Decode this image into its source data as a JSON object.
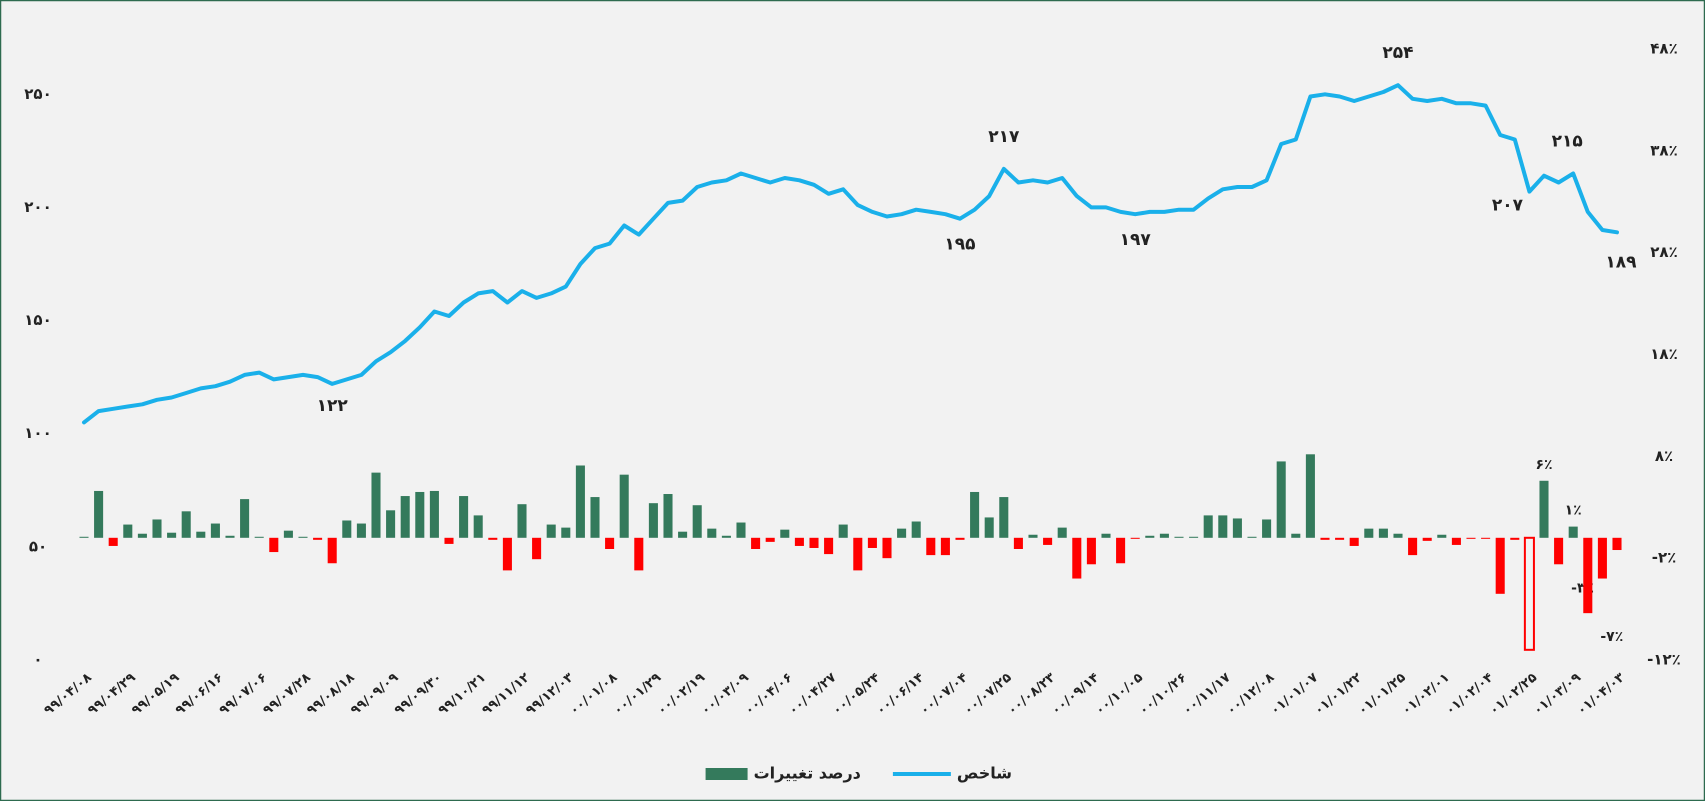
{
  "chart_data": {
    "type": "combo",
    "categories": [
      "۹۹/۰۴/۰۸",
      null,
      null,
      "۹۹/۰۴/۲۹",
      null,
      null,
      "۹۹/۰۵/۱۹",
      null,
      null,
      "۹۹/۰۶/۱۶",
      null,
      null,
      "۹۹/۰۷/۰۶",
      null,
      null,
      "۹۹/۰۷/۲۸",
      null,
      null,
      "۹۹/۰۸/۱۸",
      null,
      null,
      "۹۹/۰۹/۰۹",
      null,
      null,
      "۹۹/۰۹/۳۰",
      null,
      null,
      "۹۹/۱۰/۲۱",
      null,
      null,
      "۹۹/۱۱/۱۲",
      null,
      null,
      "۹۹/۱۲/۰۳",
      null,
      null,
      "۰۰/۰۱/۰۸",
      null,
      null,
      "۰۰/۰۱/۲۹",
      null,
      null,
      "۰۰/۰۲/۱۹",
      null,
      null,
      "۰۰/۰۳/۰۹",
      null,
      null,
      "۰۰/۰۴/۰۶",
      null,
      null,
      "۰۰/۰۴/۲۷",
      null,
      null,
      "۰۰/۰۵/۲۴",
      null,
      null,
      "۰۰/۰۶/۱۴",
      null,
      null,
      "۰۰/۰۷/۰۴",
      null,
      null,
      "۰۰/۰۷/۲۵",
      null,
      null,
      "۰۰/۰۸/۲۳",
      null,
      null,
      "۰۰/۰۹/۱۴",
      null,
      null,
      "۰۰/۱۰/۰۵",
      null,
      null,
      "۰۰/۱۰/۲۶",
      null,
      null,
      "۰۰/۱۱/۱۷",
      null,
      null,
      "۰۰/۱۲/۰۸",
      null,
      null,
      "۰۱/۰۱/۰۷",
      null,
      null,
      "۰۱/۰۱/۲۲",
      null,
      null,
      "۰۱/۰۱/۲۵",
      null,
      null,
      "۰۱/۰۲/۰۱",
      null,
      null,
      "۰۱/۰۲/۰۴",
      null,
      null,
      "۰۱/۰۲/۲۵",
      null,
      null,
      "۰۱/۰۳/۰۹",
      null,
      null,
      "۰۱/۰۴/۰۳"
    ],
    "series": [
      {
        "name": "شاخص",
        "type": "line",
        "color": "#1ab0ea",
        "values": [
          105,
          110,
          111,
          112,
          113,
          115,
          116,
          118,
          120,
          121,
          123,
          126,
          127,
          124,
          125,
          126,
          125,
          122,
          124,
          126,
          132,
          136,
          141,
          147,
          154,
          152,
          158,
          162,
          163,
          158,
          163,
          160,
          162,
          165,
          175,
          182,
          184,
          192,
          188,
          195,
          202,
          203,
          209,
          211,
          212,
          215,
          213,
          211,
          213,
          212,
          210,
          206,
          208,
          201,
          198,
          196,
          197,
          199,
          198,
          197,
          195,
          199,
          205,
          217,
          211,
          212,
          211,
          213,
          205,
          200,
          200,
          198,
          197,
          198,
          198,
          199,
          199,
          204,
          208,
          209,
          209,
          212,
          228,
          230,
          249,
          250,
          249,
          247,
          249,
          251,
          254,
          248,
          247,
          248,
          246,
          246,
          245,
          232,
          230,
          207,
          214,
          211,
          215,
          198,
          190,
          189
        ],
        "value_labels": [
          null,
          null,
          null,
          null,
          null,
          null,
          null,
          null,
          null,
          null,
          null,
          null,
          null,
          null,
          null,
          null,
          null,
          "۱۲۲",
          null,
          null,
          null,
          null,
          null,
          null,
          null,
          null,
          null,
          null,
          null,
          null,
          null,
          null,
          null,
          null,
          null,
          null,
          null,
          null,
          null,
          null,
          null,
          null,
          null,
          null,
          null,
          null,
          null,
          null,
          null,
          null,
          null,
          null,
          null,
          null,
          null,
          null,
          null,
          null,
          null,
          null,
          "۱۹۵",
          null,
          null,
          "۲۱۷",
          null,
          null,
          null,
          null,
          null,
          null,
          null,
          null,
          "۱۹۷",
          null,
          null,
          null,
          null,
          null,
          null,
          null,
          null,
          null,
          null,
          null,
          null,
          null,
          null,
          null,
          null,
          null,
          "۲۵۴",
          null,
          null,
          null,
          null,
          null,
          null,
          null,
          null,
          "۲۰۷",
          null,
          null,
          "۲۱۵",
          null,
          null,
          "۱۸۹"
        ]
      },
      {
        "name": "درصد تغییرات",
        "type": "bar",
        "axis": "y2",
        "color": "#347a5c",
        "negative_color": "#ff0000",
        "values": [
          0.1,
          4.6,
          -0.8,
          1.3,
          0.4,
          1.8,
          0.5,
          2.6,
          0.6,
          1.4,
          0.2,
          3.8,
          0.1,
          -1.4,
          0.7,
          0.1,
          -0.2,
          -2.5,
          1.7,
          1.4,
          6.4,
          2.7,
          4.1,
          4.5,
          4.6,
          -0.6,
          4.1,
          2.2,
          -0.2,
          -3.2,
          3.3,
          -2.1,
          1.3,
          1.0,
          7.1,
          4.0,
          -1.1,
          6.2,
          -3.2,
          3.4,
          4.3,
          0.6,
          3.2,
          0.9,
          0.2,
          1.5,
          -1.1,
          -0.4,
          0.8,
          -0.8,
          -1.0,
          -1.6,
          1.3,
          -3.2,
          -1.0,
          -2.0,
          0.9,
          1.6,
          -1.7,
          -1.7,
          -0.2,
          4.5,
          2.0,
          4.0,
          -1.1,
          0.3,
          -0.7,
          1.0,
          -4.0,
          -2.6,
          0.4,
          -2.5,
          -0.1,
          0.2,
          0.4,
          0.1,
          0.1,
          2.2,
          2.2,
          1.9,
          0.1,
          1.8,
          7.5,
          0.4,
          8.2,
          -0.2,
          -0.2,
          -0.8,
          0.9,
          0.9,
          0.4,
          -1.7,
          -0.3,
          0.3,
          -0.7,
          -0.1,
          -0.1,
          -5.5,
          -0.2,
          -11,
          5.6,
          -2.6,
          1.1,
          -7.4,
          -4.0,
          -1.2
        ],
        "value_labels": [
          null,
          null,
          null,
          null,
          null,
          null,
          null,
          null,
          null,
          null,
          null,
          null,
          null,
          null,
          null,
          null,
          null,
          null,
          null,
          null,
          null,
          null,
          null,
          null,
          null,
          null,
          null,
          null,
          null,
          null,
          null,
          null,
          null,
          null,
          null,
          null,
          null,
          null,
          null,
          null,
          null,
          null,
          null,
          null,
          null,
          null,
          null,
          null,
          null,
          null,
          null,
          null,
          null,
          null,
          null,
          null,
          null,
          null,
          null,
          null,
          null,
          null,
          null,
          null,
          null,
          null,
          null,
          null,
          null,
          null,
          null,
          null,
          null,
          null,
          null,
          null,
          null,
          null,
          null,
          null,
          null,
          null,
          null,
          null,
          null,
          null,
          null,
          null,
          null,
          null,
          null,
          null,
          null,
          null,
          null,
          null,
          null,
          null,
          null,
          null,
          "۶٪",
          "-۳٪",
          "۱٪",
          "-۷٪",
          null,
          null
        ],
        "outlined_bars": [
          99
        ]
      }
    ],
    "ylim": [
      0,
      270
    ],
    "yticks": [
      {
        "value": 0,
        "label": "۰"
      },
      {
        "value": 50,
        "label": "۵۰"
      },
      {
        "value": 100,
        "label": "۱۰۰"
      },
      {
        "value": 150,
        "label": "۱۵۰"
      },
      {
        "value": 200,
        "label": "۲۰۰"
      },
      {
        "value": 250,
        "label": "۲۵۰"
      }
    ],
    "y2lim": [
      -12,
      48
    ],
    "y2ticks": [
      {
        "value": -12,
        "label": "-۱۲٪"
      },
      {
        "value": -2,
        "label": "-۲٪"
      },
      {
        "value": 8,
        "label": "۸٪"
      },
      {
        "value": 18,
        "label": "۱۸٪"
      },
      {
        "value": 28,
        "label": "۲۸٪"
      },
      {
        "value": 38,
        "label": "۳۸٪"
      },
      {
        "value": 48,
        "label": "۴۸٪"
      }
    ],
    "legend": "bottom"
  }
}
